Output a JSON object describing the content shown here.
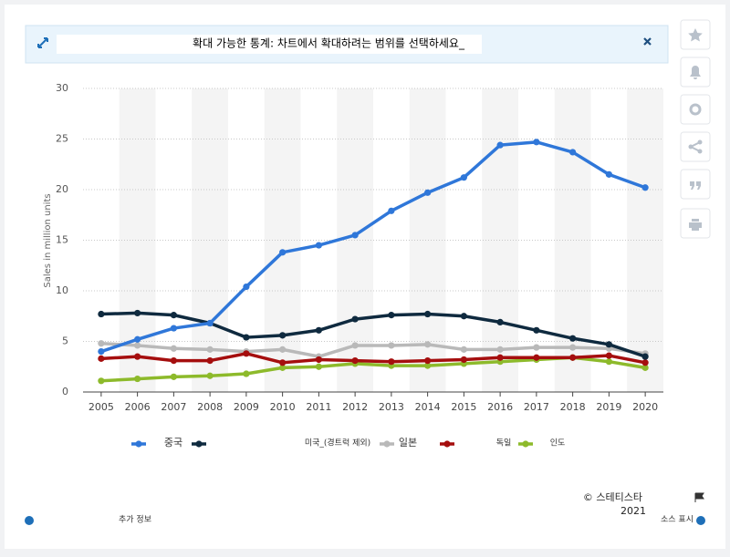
{
  "banner": {
    "text": "확대 가능한 통계: 차트에서 확대하려는 범위를 선택하세요_"
  },
  "chart_data": {
    "type": "line",
    "y_label": "Sales in million units",
    "categories": [
      "2005",
      "2006",
      "2007",
      "2008",
      "2009",
      "2010",
      "2011",
      "2012",
      "2013",
      "2014",
      "2015",
      "2016",
      "2017",
      "2018",
      "2019",
      "2020"
    ],
    "ylim": [
      0,
      30
    ],
    "yticks": [
      0,
      5,
      10,
      15,
      20,
      25,
      30
    ],
    "grid": true,
    "series": [
      {
        "name": "중국",
        "color": "#2f77d9",
        "values": [
          4.0,
          5.2,
          6.3,
          6.8,
          10.4,
          13.8,
          14.5,
          15.5,
          17.9,
          19.7,
          21.2,
          24.4,
          24.7,
          23.7,
          21.5,
          20.2
        ]
      },
      {
        "name": "미국_(경트럭 제외)",
        "color": "#0f2a3f",
        "values": [
          7.7,
          7.8,
          7.6,
          6.8,
          5.4,
          5.6,
          6.1,
          7.2,
          7.6,
          7.7,
          7.5,
          6.9,
          6.1,
          5.3,
          4.7,
          3.5
        ]
      },
      {
        "name": "일본",
        "color": "#b9b9b9",
        "values": [
          4.8,
          4.6,
          4.3,
          4.2,
          4.0,
          4.2,
          3.5,
          4.6,
          4.6,
          4.7,
          4.2,
          4.2,
          4.4,
          4.4,
          4.3,
          3.8
        ]
      },
      {
        "name": "독일",
        "color": "#a50e0e",
        "values": [
          3.3,
          3.5,
          3.1,
          3.1,
          3.8,
          2.9,
          3.2,
          3.1,
          3.0,
          3.1,
          3.2,
          3.4,
          3.4,
          3.4,
          3.6,
          2.9
        ]
      },
      {
        "name": "인도",
        "color": "#8dba2b",
        "values": [
          1.1,
          1.3,
          1.5,
          1.6,
          1.8,
          2.4,
          2.5,
          2.8,
          2.6,
          2.6,
          2.8,
          3.0,
          3.2,
          3.4,
          3.0,
          2.4
        ]
      }
    ]
  },
  "footer": {
    "copyright": "© 스테티스타",
    "year": "2021",
    "more_info": "추가 정보",
    "source": "소스 표시"
  }
}
